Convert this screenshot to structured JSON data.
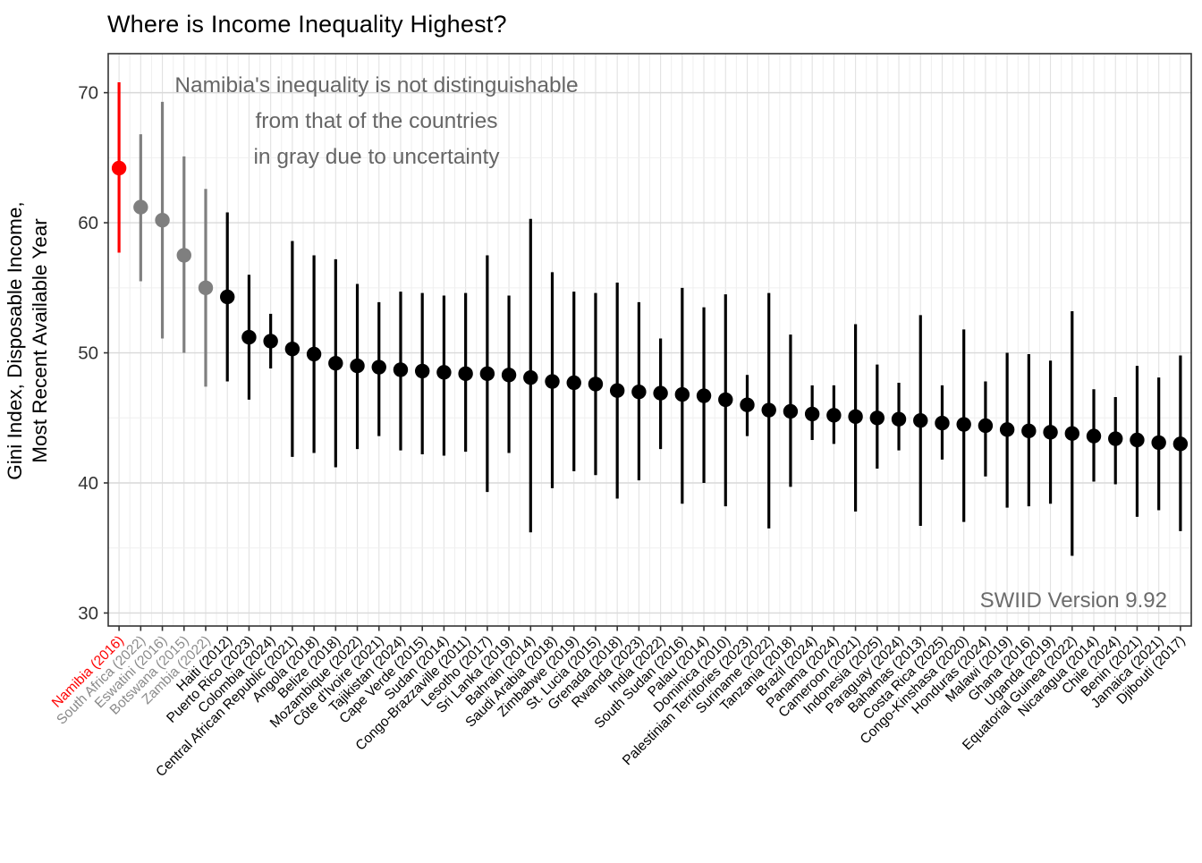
{
  "page": {
    "title": "Where is Income Inequality Highest?",
    "annotation": [
      "Namibia's inequality is not distinguishable",
      "from that of the countries",
      "in gray due to uncertainty"
    ],
    "source_note": "SWIID Version 9.92",
    "y_axis_label_lines": [
      "Gini Index, Disposable Income,",
      "Most Recent Available Year"
    ]
  },
  "chart_data": {
    "type": "scatter",
    "title": "Where is Income Inequality Highest?",
    "subtitle_annotation": "Namibia's inequality is not distinguishable from that of the countries in gray due to uncertainty",
    "ylabel": "Gini Index, Disposable Income, Most Recent Available Year",
    "xlabel": "",
    "ylim": [
      29,
      73
    ],
    "y_major_ticks": [
      30,
      40,
      50,
      60,
      70
    ],
    "y_minor_ticks": [
      35,
      45,
      55,
      65
    ],
    "grid": true,
    "legend": "none",
    "error_bars": true,
    "colors": {
      "red": "#FF0000",
      "gray": "#7F7F7F",
      "black": "#000000",
      "gray_label": "#8A8A8A",
      "grid_major": "#D9D9D9",
      "grid_minor": "#EFEFEF",
      "panel_border": "#333333",
      "axis_text": "#333333"
    },
    "points": [
      {
        "country": "Namibia",
        "year": "2016",
        "gini": 64.2,
        "ci_low": 57.7,
        "ci_high": 70.8,
        "group": "red"
      },
      {
        "country": "South Africa",
        "year": "2022",
        "gini": 61.2,
        "ci_low": 55.5,
        "ci_high": 66.8,
        "group": "gray"
      },
      {
        "country": "Eswatini",
        "year": "2016",
        "gini": 60.2,
        "ci_low": 51.1,
        "ci_high": 69.3,
        "group": "gray"
      },
      {
        "country": "Botswana",
        "year": "2015",
        "gini": 57.5,
        "ci_low": 50.0,
        "ci_high": 65.1,
        "group": "gray"
      },
      {
        "country": "Zambia",
        "year": "2022",
        "gini": 55.0,
        "ci_low": 47.4,
        "ci_high": 62.6,
        "group": "gray"
      },
      {
        "country": "Haiti",
        "year": "2012",
        "gini": 54.3,
        "ci_low": 47.8,
        "ci_high": 60.8,
        "group": "black"
      },
      {
        "country": "Puerto Rico",
        "year": "2023",
        "gini": 51.2,
        "ci_low": 46.4,
        "ci_high": 56.0,
        "group": "black"
      },
      {
        "country": "Colombia",
        "year": "2024",
        "gini": 50.9,
        "ci_low": 48.8,
        "ci_high": 53.0,
        "group": "black"
      },
      {
        "country": "Central African Republic",
        "year": "2021",
        "gini": 50.3,
        "ci_low": 42.0,
        "ci_high": 58.6,
        "group": "black"
      },
      {
        "country": "Angola",
        "year": "2018",
        "gini": 49.9,
        "ci_low": 42.3,
        "ci_high": 57.5,
        "group": "black"
      },
      {
        "country": "Belize",
        "year": "2018",
        "gini": 49.2,
        "ci_low": 41.2,
        "ci_high": 57.2,
        "group": "black"
      },
      {
        "country": "Mozambique",
        "year": "2022",
        "gini": 49.0,
        "ci_low": 42.6,
        "ci_high": 55.3,
        "group": "black"
      },
      {
        "country": "Côte d'Ivoire",
        "year": "2021",
        "gini": 48.9,
        "ci_low": 43.6,
        "ci_high": 53.9,
        "group": "black"
      },
      {
        "country": "Tajikistan",
        "year": "2024",
        "gini": 48.7,
        "ci_low": 42.5,
        "ci_high": 54.7,
        "group": "black"
      },
      {
        "country": "Cape Verde",
        "year": "2015",
        "gini": 48.6,
        "ci_low": 42.2,
        "ci_high": 54.6,
        "group": "black"
      },
      {
        "country": "Sudan",
        "year": "2014",
        "gini": 48.5,
        "ci_low": 42.1,
        "ci_high": 54.4,
        "group": "black"
      },
      {
        "country": "Congo-Brazzaville",
        "year": "2011",
        "gini": 48.4,
        "ci_low": 42.4,
        "ci_high": 54.6,
        "group": "black"
      },
      {
        "country": "Lesotho",
        "year": "2017",
        "gini": 48.4,
        "ci_low": 39.3,
        "ci_high": 57.5,
        "group": "black"
      },
      {
        "country": "Sri Lanka",
        "year": "2019",
        "gini": 48.3,
        "ci_low": 42.3,
        "ci_high": 54.4,
        "group": "black"
      },
      {
        "country": "Bahrain",
        "year": "2014",
        "gini": 48.1,
        "ci_low": 36.2,
        "ci_high": 60.3,
        "group": "black"
      },
      {
        "country": "Saudi Arabia",
        "year": "2018",
        "gini": 47.8,
        "ci_low": 39.6,
        "ci_high": 56.2,
        "group": "black"
      },
      {
        "country": "Zimbabwe",
        "year": "2019",
        "gini": 47.7,
        "ci_low": 40.9,
        "ci_high": 54.7,
        "group": "black"
      },
      {
        "country": "St. Lucia",
        "year": "2015",
        "gini": 47.6,
        "ci_low": 40.6,
        "ci_high": 54.6,
        "group": "black"
      },
      {
        "country": "Grenada",
        "year": "2018",
        "gini": 47.1,
        "ci_low": 38.8,
        "ci_high": 55.4,
        "group": "black"
      },
      {
        "country": "Rwanda",
        "year": "2023",
        "gini": 47.0,
        "ci_low": 40.2,
        "ci_high": 53.9,
        "group": "black"
      },
      {
        "country": "India",
        "year": "2022",
        "gini": 46.9,
        "ci_low": 42.6,
        "ci_high": 51.1,
        "group": "black"
      },
      {
        "country": "South Sudan",
        "year": "2016",
        "gini": 46.8,
        "ci_low": 38.4,
        "ci_high": 55.0,
        "group": "black"
      },
      {
        "country": "Palau",
        "year": "2014",
        "gini": 46.7,
        "ci_low": 40.0,
        "ci_high": 53.5,
        "group": "black"
      },
      {
        "country": "Dominica",
        "year": "2010",
        "gini": 46.4,
        "ci_low": 38.2,
        "ci_high": 54.5,
        "group": "black"
      },
      {
        "country": "Palestinian Territories",
        "year": "2023",
        "gini": 46.0,
        "ci_low": 43.6,
        "ci_high": 48.3,
        "group": "black"
      },
      {
        "country": "Suriname",
        "year": "2022",
        "gini": 45.6,
        "ci_low": 36.5,
        "ci_high": 54.6,
        "group": "black"
      },
      {
        "country": "Tanzania",
        "year": "2018",
        "gini": 45.5,
        "ci_low": 39.7,
        "ci_high": 51.4,
        "group": "black"
      },
      {
        "country": "Brazil",
        "year": "2024",
        "gini": 45.3,
        "ci_low": 43.3,
        "ci_high": 47.5,
        "group": "black"
      },
      {
        "country": "Panama",
        "year": "2024",
        "gini": 45.2,
        "ci_low": 43.0,
        "ci_high": 47.5,
        "group": "black"
      },
      {
        "country": "Cameroon",
        "year": "2021",
        "gini": 45.1,
        "ci_low": 37.8,
        "ci_high": 52.2,
        "group": "black"
      },
      {
        "country": "Indonesia",
        "year": "2025",
        "gini": 45.0,
        "ci_low": 41.1,
        "ci_high": 49.1,
        "group": "black"
      },
      {
        "country": "Paraguay",
        "year": "2024",
        "gini": 44.9,
        "ci_low": 42.5,
        "ci_high": 47.7,
        "group": "black"
      },
      {
        "country": "Bahamas",
        "year": "2013",
        "gini": 44.8,
        "ci_low": 36.7,
        "ci_high": 52.9,
        "group": "black"
      },
      {
        "country": "Costa Rica",
        "year": "2025",
        "gini": 44.6,
        "ci_low": 41.8,
        "ci_high": 47.5,
        "group": "black"
      },
      {
        "country": "Congo-Kinshasa",
        "year": "2020",
        "gini": 44.5,
        "ci_low": 37.0,
        "ci_high": 51.8,
        "group": "black"
      },
      {
        "country": "Honduras",
        "year": "2024",
        "gini": 44.4,
        "ci_low": 40.5,
        "ci_high": 47.8,
        "group": "black"
      },
      {
        "country": "Malawi",
        "year": "2019",
        "gini": 44.1,
        "ci_low": 38.1,
        "ci_high": 50.0,
        "group": "black"
      },
      {
        "country": "Ghana",
        "year": "2016",
        "gini": 44.0,
        "ci_low": 38.2,
        "ci_high": 49.9,
        "group": "black"
      },
      {
        "country": "Uganda",
        "year": "2019",
        "gini": 43.9,
        "ci_low": 38.4,
        "ci_high": 49.4,
        "group": "black"
      },
      {
        "country": "Equatorial Guinea",
        "year": "2022",
        "gini": 43.8,
        "ci_low": 34.4,
        "ci_high": 53.2,
        "group": "black"
      },
      {
        "country": "Nicaragua",
        "year": "2014",
        "gini": 43.6,
        "ci_low": 40.1,
        "ci_high": 47.2,
        "group": "black"
      },
      {
        "country": "Chile",
        "year": "2024",
        "gini": 43.4,
        "ci_low": 39.9,
        "ci_high": 46.6,
        "group": "black"
      },
      {
        "country": "Benin",
        "year": "2021",
        "gini": 43.3,
        "ci_low": 37.4,
        "ci_high": 49.0,
        "group": "black"
      },
      {
        "country": "Jamaica",
        "year": "2021",
        "gini": 43.1,
        "ci_low": 37.9,
        "ci_high": 48.1,
        "group": "black"
      },
      {
        "country": "Djibouti",
        "year": "2017",
        "gini": 43.0,
        "ci_low": 36.3,
        "ci_high": 49.8,
        "group": "black"
      }
    ]
  }
}
